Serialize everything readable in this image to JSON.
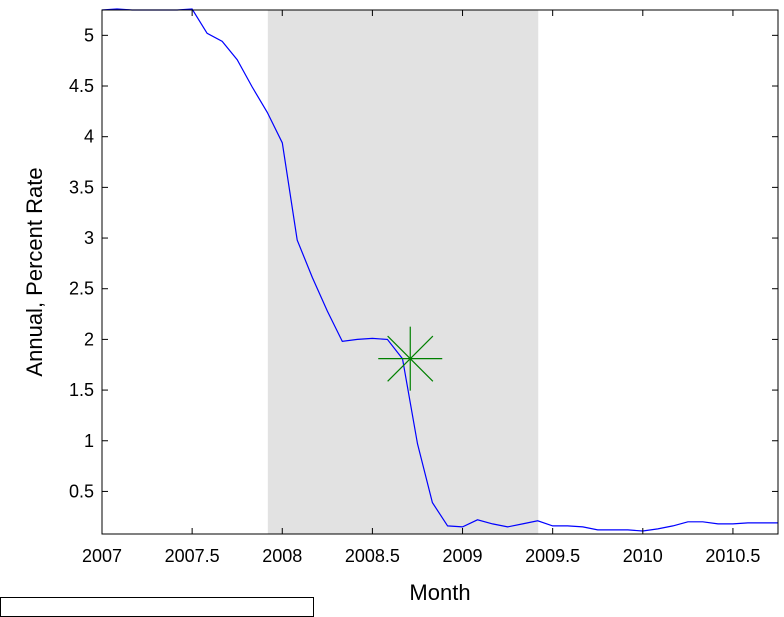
{
  "chart_data": {
    "type": "line",
    "title": "",
    "xlabel": "Month",
    "ylabel": "Annual, Percent Rate",
    "xlim": [
      2007,
      2010.75
    ],
    "ylim": [
      0.08,
      5.25
    ],
    "x_ticks": [
      2007,
      2007.5,
      2008,
      2008.5,
      2009,
      2009.5,
      2010,
      2010.5
    ],
    "x_tick_labels": [
      "2007",
      "2007.5",
      "2008",
      "2008.5",
      "2009",
      "2009.5",
      "2010",
      "2010.5"
    ],
    "y_ticks": [
      0.5,
      1,
      1.5,
      2,
      2.5,
      3,
      3.5,
      4,
      4.5,
      5
    ],
    "y_tick_labels": [
      "0.5",
      "1",
      "1.5",
      "2",
      "2.5",
      "3",
      "3.5",
      "4",
      "4.5",
      "5"
    ],
    "grid": false,
    "shaded_region": {
      "x_start": 2007.92,
      "x_end": 2009.42,
      "color": "#e2e2e2"
    },
    "series": [
      {
        "color": "#0000ff",
        "x": [
          2007.0,
          2007.083,
          2007.167,
          2007.25,
          2007.333,
          2007.417,
          2007.5,
          2007.583,
          2007.667,
          2007.75,
          2007.833,
          2007.917,
          2008.0,
          2008.083,
          2008.167,
          2008.25,
          2008.333,
          2008.417,
          2008.5,
          2008.583,
          2008.667,
          2008.75,
          2008.833,
          2008.917,
          2009.0,
          2009.083,
          2009.167,
          2009.25,
          2009.333,
          2009.417,
          2009.5,
          2009.583,
          2009.667,
          2009.75,
          2009.833,
          2009.917,
          2010.0,
          2010.083,
          2010.167,
          2010.25,
          2010.333,
          2010.417,
          2010.5,
          2010.583,
          2010.667,
          2010.75
        ],
        "y": [
          5.25,
          5.26,
          5.25,
          5.25,
          5.25,
          5.25,
          5.26,
          5.02,
          4.94,
          4.76,
          4.49,
          4.24,
          3.94,
          2.98,
          2.61,
          2.28,
          1.98,
          2.0,
          2.01,
          2.0,
          1.81,
          0.97,
          0.39,
          0.16,
          0.15,
          0.22,
          0.18,
          0.15,
          0.18,
          0.21,
          0.16,
          0.16,
          0.15,
          0.12,
          0.12,
          0.12,
          0.11,
          0.13,
          0.16,
          0.2,
          0.2,
          0.18,
          0.18,
          0.19,
          0.19,
          0.19
        ]
      },
      {
        "color": "#008000",
        "marker": "asterisk",
        "x": [
          2008.71
        ],
        "y": [
          1.81
        ]
      }
    ]
  }
}
